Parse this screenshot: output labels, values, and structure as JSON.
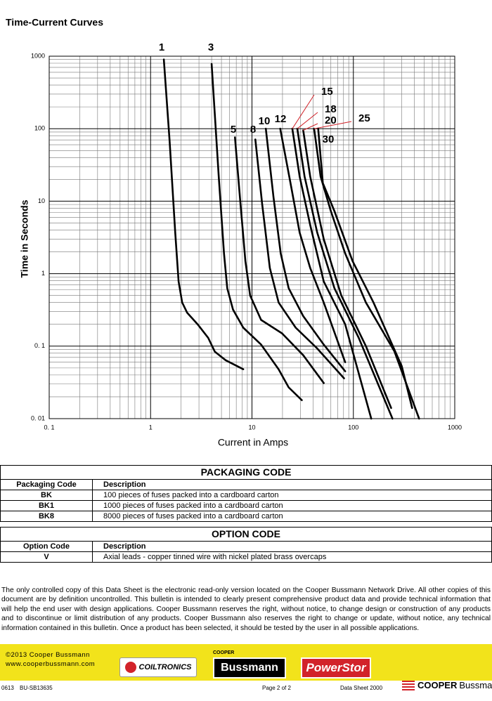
{
  "chart_data": {
    "type": "line",
    "title": "Time-Current Curves",
    "x_label": "Current in Amps",
    "y_label": "Time in Seconds",
    "log_x": true,
    "log_y": true,
    "grid": true,
    "color": "#000000",
    "xlim": [
      0.1,
      1000
    ],
    "ylim": [
      0.01,
      1000
    ],
    "xticks": [
      {
        "value": 0.1,
        "label": "0. 1"
      },
      1,
      10,
      100,
      1000
    ],
    "yticks": [
      {
        "value": 0.01,
        "label": "0. 01"
      },
      {
        "value": 0.1,
        "label": "0. 1"
      },
      1,
      10,
      100,
      1000
    ],
    "series": [
      {
        "name": "1",
        "x": [
          1.35,
          1.54,
          1.75,
          1.89,
          2.05,
          2.29,
          2.91,
          3.7,
          4.3,
          5.5,
          8.2
        ],
        "values": [
          900,
          68,
          3.7,
          0.78,
          0.4,
          0.29,
          0.2,
          0.13,
          0.084,
          0.064,
          0.048
        ]
      },
      {
        "name": "3",
        "x": [
          4.0,
          4.7,
          5.3,
          5.7,
          6.5,
          8.2,
          12.3,
          18.3,
          23,
          31
        ],
        "values": [
          780,
          22,
          1.9,
          0.63,
          0.32,
          0.18,
          0.105,
          0.048,
          0.027,
          0.018
        ]
      },
      {
        "name": "5",
        "x": [
          6.8,
          7.6,
          8.6,
          9.6,
          12.3,
          19.8,
          32,
          51
        ],
        "values": [
          76,
          11.5,
          1.5,
          0.5,
          0.23,
          0.15,
          0.075,
          0.031
        ]
      },
      {
        "name": "8",
        "x": [
          10.8,
          12.6,
          15,
          18.3,
          27,
          44,
          81
        ],
        "values": [
          71,
          9.1,
          1.2,
          0.4,
          0.18,
          0.093,
          0.036
        ]
      },
      {
        "name": "10",
        "x": [
          13.7,
          16.3,
          19.2,
          23,
          32,
          51,
          83
        ],
        "values": [
          100,
          11.4,
          1.9,
          0.63,
          0.26,
          0.105,
          0.045
        ]
      },
      {
        "name": "12",
        "x": [
          19,
          24,
          29.5,
          37.5,
          51,
          83
        ],
        "values": [
          100,
          17.8,
          3.7,
          1.2,
          0.4,
          0.06
        ]
      },
      {
        "name": "15",
        "x": [
          25,
          29.5,
          37.5,
          51,
          83,
          150
        ],
        "values": [
          100,
          22,
          4.7,
          0.78,
          0.2,
          0.01
        ]
      },
      {
        "name": "18",
        "x": [
          28,
          33,
          44,
          65,
          113,
          243
        ],
        "values": [
          100,
          22,
          3.7,
          0.63,
          0.13,
          0.01
        ]
      },
      {
        "name": "20",
        "x": [
          32,
          37.5,
          51,
          76,
          133,
          236
        ],
        "values": [
          95,
          22,
          3,
          0.5,
          0.1,
          0.014
        ]
      },
      {
        "name": "25",
        "x": [
          41,
          47.5,
          60,
          83,
          133,
          254,
          445
        ],
        "values": [
          100,
          22,
          7.3,
          1.9,
          0.4,
          0.085,
          0.01
        ]
      },
      {
        "name": "30",
        "x": [
          45,
          50,
          65,
          98,
          158,
          300,
          380
        ],
        "values": [
          100,
          17.8,
          7.3,
          1.5,
          0.4,
          0.053,
          0.014
        ]
      }
    ]
  },
  "packaging_code": {
    "title": "PACKAGING CODE",
    "headers": [
      "Packaging Code",
      "Description"
    ],
    "rows": [
      [
        "BK",
        "100 pieces of fuses packed into a cardboard carton"
      ],
      [
        "BK1",
        "1000 pieces of fuses packed into a cardboard carton"
      ],
      [
        "BK8",
        "8000 pieces of fuses packed into a cardboard carton"
      ]
    ]
  },
  "option_code": {
    "title": "OPTION CODE",
    "headers": [
      "Option Code",
      "Description"
    ],
    "rows": [
      [
        "V",
        "Axial leads - copper tinned wire with nickel plated brass overcaps"
      ]
    ]
  },
  "disclaimer": "The only controlled copy of this Data Sheet is the electronic read-only version located on the Cooper Bussmann Network Drive. All other copies of this document are by definition uncontrolled. This bulletin is intended to clearly present comprehensive product data and provide technical information that will help the end user with design applications. Cooper Bussmann reserves the right, without notice, to change design or construction of any products and to discontinue or limit distribution of any products. Cooper Bussmann also reserves the right to change or update, without notice, any technical information contained in this bulletin. Once a product has been selected, it should be tested by the user in all possible applications.",
  "footer": {
    "copyright": "©2013 Cooper Bussmann",
    "website": "www.cooperbussmann.com",
    "logos": [
      "COILTRONICS",
      "COOPER",
      "Bussmann",
      "PowerStor"
    ],
    "doc_code": "0613",
    "doc_number": "BU-SB13635",
    "page": "Page 2 of 2",
    "data_sheet": "Data Sheet 2000",
    "brand": [
      "COOPER",
      "Bussmann"
    ]
  }
}
